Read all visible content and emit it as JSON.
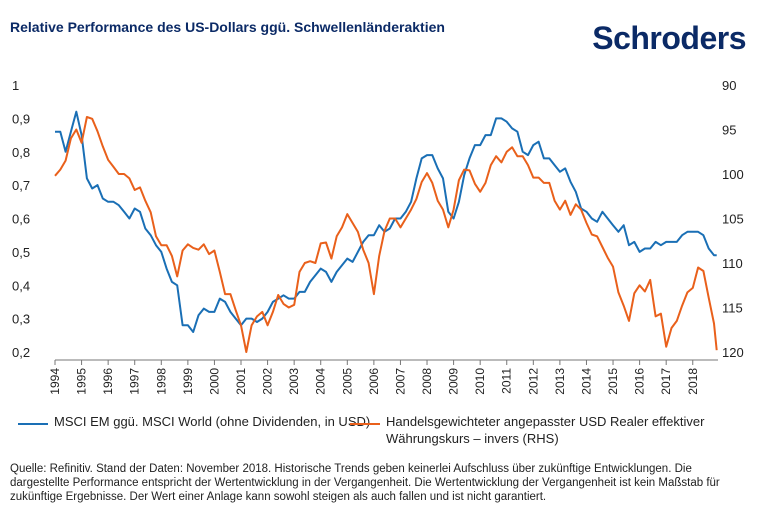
{
  "header": {
    "title": "Relative Performance des US-Dollars ggü. Schwellenländeraktien",
    "logo": "Schroders"
  },
  "colors": {
    "series1": "#1a6fb5",
    "series2": "#e9601b",
    "title": "#0b2a66"
  },
  "chart_data": {
    "type": "line",
    "x_range": [
      1994,
      2018.95
    ],
    "x_ticks": [
      "1994",
      "1995",
      "1996",
      "1997",
      "1998",
      "1999",
      "2000",
      "2001",
      "2002",
      "2003",
      "2004",
      "2005",
      "2006",
      "2007",
      "2008",
      "2009",
      "2010",
      "2011",
      "2012",
      "2013",
      "2014",
      "2015",
      "2016",
      "2017",
      "2018"
    ],
    "y_left": {
      "range": [
        0.2,
        1.0
      ],
      "ticks": [
        "1",
        "0,9",
        "0,8",
        "0,7",
        "0,6",
        "0,5",
        "0,4",
        "0,3",
        "0,2"
      ]
    },
    "y_right": {
      "range": [
        90,
        120
      ],
      "reversed": true,
      "ticks": [
        "90",
        "95",
        "100",
        "105",
        "110",
        "115",
        "120"
      ]
    },
    "grid": false,
    "legend_position": "bottom",
    "series": [
      {
        "name": "MSCI EM ggü. MSCI World (ohne Dividenden, in USD)",
        "axis": "left",
        "x": [
          1994.0,
          1994.2,
          1994.4,
          1994.6,
          1994.8,
          1995.0,
          1995.2,
          1995.4,
          1995.6,
          1995.8,
          1996.0,
          1996.2,
          1996.4,
          1996.6,
          1996.8,
          1997.0,
          1997.2,
          1997.4,
          1997.6,
          1997.8,
          1998.0,
          1998.2,
          1998.4,
          1998.6,
          1998.8,
          1999.0,
          1999.2,
          1999.4,
          1999.6,
          1999.8,
          2000.0,
          2000.2,
          2000.4,
          2000.6,
          2000.8,
          2001.0,
          2001.2,
          2001.4,
          2001.6,
          2001.8,
          2002.0,
          2002.2,
          2002.4,
          2002.6,
          2002.8,
          2003.0,
          2003.2,
          2003.4,
          2003.6,
          2003.8,
          2004.0,
          2004.2,
          2004.4,
          2004.6,
          2004.8,
          2005.0,
          2005.2,
          2005.4,
          2005.6,
          2005.8,
          2006.0,
          2006.2,
          2006.4,
          2006.6,
          2006.8,
          2007.0,
          2007.2,
          2007.4,
          2007.6,
          2007.8,
          2008.0,
          2008.2,
          2008.4,
          2008.6,
          2008.8,
          2009.0,
          2009.2,
          2009.4,
          2009.6,
          2009.8,
          2010.0,
          2010.2,
          2010.4,
          2010.6,
          2010.8,
          2011.0,
          2011.2,
          2011.4,
          2011.6,
          2011.8,
          2012.0,
          2012.2,
          2012.4,
          2012.6,
          2012.8,
          2013.0,
          2013.2,
          2013.4,
          2013.6,
          2013.8,
          2014.0,
          2014.2,
          2014.4,
          2014.6,
          2014.8,
          2015.0,
          2015.2,
          2015.4,
          2015.6,
          2015.8,
          2016.0,
          2016.2,
          2016.4,
          2016.6,
          2016.8,
          2017.0,
          2017.2,
          2017.4,
          2017.6,
          2017.8,
          2018.0,
          2018.2,
          2018.4,
          2018.6,
          2018.8,
          2018.9
        ],
        "y": [
          0.86,
          0.86,
          0.8,
          0.86,
          0.92,
          0.85,
          0.72,
          0.69,
          0.7,
          0.66,
          0.65,
          0.65,
          0.64,
          0.62,
          0.6,
          0.63,
          0.62,
          0.57,
          0.55,
          0.52,
          0.5,
          0.45,
          0.41,
          0.4,
          0.28,
          0.28,
          0.26,
          0.31,
          0.33,
          0.32,
          0.32,
          0.36,
          0.35,
          0.32,
          0.3,
          0.28,
          0.3,
          0.3,
          0.29,
          0.3,
          0.32,
          0.35,
          0.36,
          0.37,
          0.36,
          0.36,
          0.38,
          0.38,
          0.41,
          0.43,
          0.45,
          0.44,
          0.41,
          0.44,
          0.46,
          0.48,
          0.47,
          0.5,
          0.53,
          0.55,
          0.55,
          0.58,
          0.56,
          0.57,
          0.6,
          0.6,
          0.62,
          0.65,
          0.72,
          0.78,
          0.79,
          0.79,
          0.75,
          0.72,
          0.62,
          0.6,
          0.65,
          0.73,
          0.78,
          0.82,
          0.82,
          0.85,
          0.85,
          0.9,
          0.9,
          0.89,
          0.87,
          0.86,
          0.8,
          0.79,
          0.82,
          0.83,
          0.78,
          0.78,
          0.76,
          0.74,
          0.75,
          0.71,
          0.68,
          0.63,
          0.62,
          0.6,
          0.59,
          0.62,
          0.6,
          0.58,
          0.56,
          0.58,
          0.52,
          0.53,
          0.5,
          0.51,
          0.51,
          0.53,
          0.52,
          0.53,
          0.53,
          0.53,
          0.55,
          0.56,
          0.56,
          0.56,
          0.55,
          0.51,
          0.49,
          0.49
        ]
      },
      {
        "name": "Handelsgewichteter angepasster USD Realer effektiver Währungskurs – invers (RHS)",
        "axis": "right",
        "x": [
          1994.0,
          1994.2,
          1994.4,
          1994.6,
          1994.8,
          1995.0,
          1995.2,
          1995.4,
          1995.6,
          1995.8,
          1996.0,
          1996.2,
          1996.4,
          1996.6,
          1996.8,
          1997.0,
          1997.2,
          1997.4,
          1997.6,
          1997.8,
          1998.0,
          1998.2,
          1998.4,
          1998.6,
          1998.8,
          1999.0,
          1999.2,
          1999.4,
          1999.6,
          1999.8,
          2000.0,
          2000.2,
          2000.4,
          2000.6,
          2000.8,
          2001.0,
          2001.2,
          2001.4,
          2001.6,
          2001.8,
          2002.0,
          2002.2,
          2002.4,
          2002.6,
          2002.8,
          2003.0,
          2003.2,
          2003.4,
          2003.6,
          2003.8,
          2004.0,
          2004.2,
          2004.4,
          2004.6,
          2004.8,
          2005.0,
          2005.2,
          2005.4,
          2005.6,
          2005.8,
          2006.0,
          2006.2,
          2006.4,
          2006.6,
          2006.8,
          2007.0,
          2007.2,
          2007.4,
          2007.6,
          2007.8,
          2008.0,
          2008.2,
          2008.4,
          2008.6,
          2008.8,
          2009.0,
          2009.2,
          2009.4,
          2009.6,
          2009.8,
          2010.0,
          2010.2,
          2010.4,
          2010.6,
          2010.8,
          2011.0,
          2011.2,
          2011.4,
          2011.6,
          2011.8,
          2012.0,
          2012.2,
          2012.4,
          2012.6,
          2012.8,
          2013.0,
          2013.2,
          2013.4,
          2013.6,
          2013.8,
          2014.0,
          2014.2,
          2014.4,
          2014.6,
          2014.8,
          2015.0,
          2015.2,
          2015.4,
          2015.6,
          2015.8,
          2016.0,
          2016.2,
          2016.4,
          2016.6,
          2016.8,
          2017.0,
          2017.2,
          2017.4,
          2017.6,
          2017.8,
          2018.0,
          2018.2,
          2018.4,
          2018.6,
          2018.8,
          2018.9
        ],
        "y": [
          100.2,
          99.5,
          98.5,
          96.0,
          95.0,
          96.5,
          93.6,
          93.8,
          95.2,
          96.9,
          98.4,
          99.2,
          100.0,
          100.0,
          100.5,
          101.8,
          101.5,
          103.0,
          104.3,
          107.0,
          108.0,
          108.0,
          109.2,
          111.5,
          108.6,
          107.9,
          108.3,
          108.5,
          107.9,
          109.0,
          108.6,
          111.0,
          113.5,
          113.5,
          115.3,
          117.0,
          120.0,
          117.0,
          116.0,
          115.5,
          117.0,
          115.5,
          113.6,
          114.6,
          115.0,
          114.7,
          111.0,
          110.0,
          109.8,
          110.0,
          107.8,
          107.7,
          109.5,
          107.0,
          106.0,
          104.5,
          105.5,
          106.5,
          108.5,
          110.0,
          113.5,
          109.2,
          106.4,
          105.0,
          105.0,
          106.0,
          105.0,
          104.0,
          102.8,
          100.9,
          99.9,
          101.0,
          103.0,
          104.0,
          106.0,
          104.0,
          100.7,
          99.5,
          99.6,
          101.1,
          102.0,
          101.0,
          99.0,
          98.0,
          98.7,
          97.5,
          97.0,
          98.0,
          98.0,
          99.0,
          100.4,
          100.4,
          101.0,
          101.0,
          103.0,
          104.0,
          103.0,
          104.6,
          103.4,
          104.0,
          105.5,
          106.8,
          107.0,
          108.2,
          109.4,
          110.4,
          113.3,
          114.8,
          116.5,
          113.4,
          112.5,
          113.2,
          111.9,
          116.0,
          115.7,
          119.4,
          117.3,
          116.5,
          114.8,
          113.3,
          112.8,
          110.5,
          110.9,
          113.9,
          116.8,
          119.8
        ]
      }
    ]
  },
  "legend": {
    "series1_label": "MSCI EM ggü. MSCI World (ohne Dividenden, in USD)",
    "series2_label": "Handelsgewichteter angepasster USD Realer effektiver Währungskurs – invers (RHS)"
  },
  "footer": {
    "source": "Quelle: Refinitiv. Stand der Daten: November 2018. Historische Trends geben keinerlei Aufschluss über zukünftige Entwicklungen. Die dargestellte Performance entspricht der Wertentwicklung in der Vergangenheit. Die Wertentwicklung der Vergangenheit ist kein Maßstab für zukünftige Ergebnisse. Der Wert einer Anlage kann sowohl steigen als auch fallen und ist nicht garantiert."
  }
}
